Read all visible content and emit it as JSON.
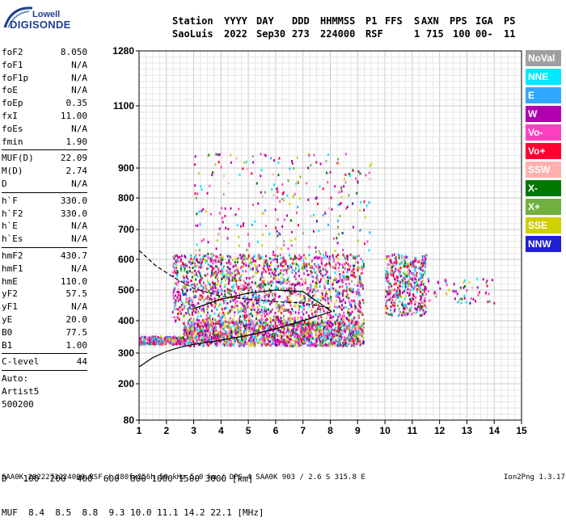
{
  "logo": {
    "company": "Lowell",
    "product": "DIGISONDE"
  },
  "header": {
    "labels": [
      "Station",
      "YYYY",
      "DAY",
      "DDD",
      "HHMMSS",
      "P1",
      "FFS",
      "S",
      "AXN",
      "PPS",
      "IGA",
      "PS"
    ],
    "values": [
      "SaoLuis",
      "2022",
      "Sep30",
      "273",
      "224000",
      "RSF",
      "",
      "1",
      "715",
      "100",
      "00-",
      "11"
    ]
  },
  "parameters": {
    "group1": [
      {
        "name": "foF2",
        "value": "8.050"
      },
      {
        "name": "foF1",
        "value": "N/A"
      },
      {
        "name": "foF1p",
        "value": "N/A"
      },
      {
        "name": "foE",
        "value": "N/A"
      },
      {
        "name": "foEp",
        "value": "0.35"
      },
      {
        "name": "fxI",
        "value": "11.00"
      },
      {
        "name": "foEs",
        "value": "N/A"
      },
      {
        "name": "fmin",
        "value": "1.90"
      }
    ],
    "group2": [
      {
        "name": "MUF(D)",
        "value": "22.09"
      },
      {
        "name": "M(D)",
        "value": "2.74"
      },
      {
        "name": "D",
        "value": "N/A"
      }
    ],
    "group3": [
      {
        "name": "h`F",
        "value": "330.0"
      },
      {
        "name": "h`F2",
        "value": "330.0"
      },
      {
        "name": "h`E",
        "value": "N/A"
      },
      {
        "name": "h`Es",
        "value": "N/A"
      }
    ],
    "group4": [
      {
        "name": "hmF2",
        "value": "430.7"
      },
      {
        "name": "hmF1",
        "value": "N/A"
      },
      {
        "name": "hmE",
        "value": "110.0"
      },
      {
        "name": "yF2",
        "value": "57.5"
      },
      {
        "name": "yF1",
        "value": "N/A"
      },
      {
        "name": "yE",
        "value": "20.0"
      },
      {
        "name": "B0",
        "value": "77.5"
      },
      {
        "name": "B1",
        "value": "1.00"
      }
    ],
    "group5": [
      {
        "name": "C-level",
        "value": "44"
      }
    ],
    "scaling": [
      "Auto:",
      "Artist5",
      "500200"
    ]
  },
  "legend": [
    {
      "label": "NoVal",
      "color": "#a0a0a0"
    },
    {
      "label": "NNE",
      "color": "#00e8ff"
    },
    {
      "label": "E",
      "color": "#30a8ff"
    },
    {
      "label": "W",
      "color": "#b000b0"
    },
    {
      "label": "Vo-",
      "color": "#ff40c0"
    },
    {
      "label": "Vo+",
      "color": "#ff0030"
    },
    {
      "label": "SSW",
      "color": "#ffb0b0"
    },
    {
      "label": "X-",
      "color": "#007800"
    },
    {
      "label": "X+",
      "color": "#70b040"
    },
    {
      "label": "SSE",
      "color": "#d0d000"
    },
    {
      "label": "NNW",
      "color": "#2020d0"
    }
  ],
  "muf_table": {
    "d_label": "D",
    "d_values": [
      "100",
      "200",
      "400",
      "600",
      "800",
      "1000",
      "1500",
      "3000"
    ],
    "d_unit": "[km]",
    "muf_label": "MUF",
    "muf_values": [
      "8.4",
      "8.5",
      "8.8",
      "9.3",
      "10.0",
      "11.1",
      "14.2",
      "22.1"
    ],
    "muf_unit": "[MHz]"
  },
  "footer": {
    "left": "SAA0K_2022273224000.RSF / 280fx256h 50 kHz 5.0 km / DPS-4 SAA0K 903 / 2.6 S 315.8 E",
    "right": "Ion2Png 1.3.17"
  },
  "chart_data": {
    "type": "scatter",
    "xlim": [
      1,
      15
    ],
    "ylim": [
      80,
      1280
    ],
    "x_ticks": [
      1,
      2,
      3,
      4,
      5,
      6,
      7,
      8,
      9,
      10,
      11,
      12,
      13,
      14,
      15
    ],
    "y_ticks": [
      80,
      200,
      300,
      400,
      500,
      600,
      700,
      800,
      900,
      1100,
      1280
    ],
    "y_scale": "nonlinear (virtual-height ionogram scale)",
    "grid": true,
    "echo_clusters": [
      {
        "name": "low trace",
        "x_range": [
          1.0,
          2.6
        ],
        "y_range": [
          330,
          355
        ]
      },
      {
        "name": "main trace lower",
        "x_range": [
          2.6,
          9.2
        ],
        "y_range": [
          325,
          400
        ]
      },
      {
        "name": "main trace upper",
        "x_range": [
          2.2,
          9.2
        ],
        "y_range": [
          400,
          620
        ]
      },
      {
        "name": "trace tail",
        "x_range": [
          10.0,
          11.5
        ],
        "y_range": [
          420,
          620
        ]
      },
      {
        "name": "sparse points",
        "x_range": [
          11.5,
          14.0
        ],
        "y_range": [
          460,
          540
        ]
      },
      {
        "name": "scattered high echoes",
        "x_range": [
          3.0,
          9.5
        ],
        "y_range": [
          620,
          950
        ]
      }
    ],
    "profile_curves": [
      {
        "name": "solid lower",
        "x": [
          1.0,
          1.5,
          2.0,
          2.5,
          3.0,
          3.5,
          4.0,
          5.0,
          6.0,
          7.0,
          8.05
        ],
        "y": [
          255,
          285,
          305,
          318,
          327,
          333,
          340,
          355,
          375,
          400,
          430
        ]
      },
      {
        "name": "solid upper",
        "x": [
          3.0,
          4.0,
          5.0,
          6.0,
          7.0,
          8.05
        ],
        "y": [
          440,
          470,
          490,
          500,
          495,
          430
        ]
      },
      {
        "name": "dashed",
        "x": [
          1.0,
          1.6,
          2.2,
          3.0,
          4.0,
          5.0,
          6.0,
          7.0,
          8.05
        ],
        "y": [
          630,
          580,
          545,
          505,
          480,
          470,
          462,
          458,
          440
        ]
      }
    ]
  }
}
